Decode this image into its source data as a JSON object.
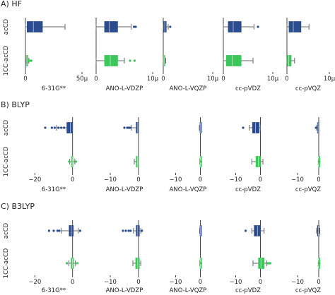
{
  "colors": {
    "acCD": "#2b4d8f",
    "1CC-acCD": "#3cc75a",
    "whisker": "#666666",
    "axis": "#444444"
  },
  "row_labels": [
    "acCD",
    "1CC-acCD"
  ],
  "chart_data": [
    {
      "type": "box",
      "panel_label": "A) HF",
      "x_unit": "μ",
      "subplots": [
        {
          "basis": "6-31G**",
          "xlim": [
            0,
            5e-05
          ],
          "ticks": [
            {
              "v": 0,
              "label": "0"
            },
            {
              "v": 5e-05,
              "label": "50μ"
            }
          ],
          "acCD": {
            "box": [
              1.5e-06,
              7e-06,
              1.5e-05
            ],
            "whiskers": [
              0,
              3.5e-05
            ],
            "outliers": []
          },
          "1CC-acCD": {
            "box": [
              8e-07,
              1.3e-06,
              2.2e-06
            ],
            "whiskers": [
              2e-07,
              3e-06
            ],
            "outliers": [
              4.5e-06,
              5.2e-06,
              3.6e-06,
              2.8e-06
            ]
          }
        },
        {
          "basis": "ANO-L-VDZP",
          "xlim": [
            0,
            1e-05
          ],
          "ticks": [
            {
              "v": 0,
              "label": "0"
            },
            {
              "v": 1e-05,
              "label": "10μ"
            }
          ],
          "acCD": {
            "box": [
              1.5e-06,
              2.3e-06,
              3.8e-06
            ],
            "whiskers": [
              0,
              6.2e-06
            ],
            "outliers": [
              6.7e-06,
              7e-06
            ]
          },
          "1CC-acCD": {
            "box": [
              1.5e-06,
              2.5e-06,
              3.8e-06
            ],
            "whiskers": [
              0,
              5e-06
            ],
            "outliers": [
              6e-06,
              6.8e-06
            ]
          }
        },
        {
          "basis": "ANO-L-VQZP",
          "xlim": [
            0,
            1e-05
          ],
          "ticks": [
            {
              "v": 0,
              "label": "0"
            },
            {
              "v": 1e-05,
              "label": "10μ"
            }
          ],
          "acCD": {
            "box": [
              1e-07,
              3e-07,
              6e-07
            ],
            "whiskers": [
              0,
              1e-06
            ],
            "outliers": [
              1.4e-06
            ]
          },
          "1CC-acCD": {
            "box": [
              5e-08,
              1.5e-07,
              3e-07
            ],
            "whiskers": [
              0,
              5e-07
            ],
            "outliers": []
          }
        },
        {
          "basis": "cc-pVDZ",
          "xlim": [
            0,
            1e-05
          ],
          "ticks": [
            {
              "v": 0,
              "label": "0"
            },
            {
              "v": 1e-05,
              "label": "10μ"
            }
          ],
          "acCD": {
            "box": [
              1e-06,
              2e-06,
              3.6e-06
            ],
            "whiskers": [
              0,
              6.2e-06
            ],
            "outliers": [
              7e-06
            ]
          },
          "1CC-acCD": {
            "box": [
              6e-07,
              1.8e-06,
              3.6e-06
            ],
            "whiskers": [
              0,
              6e-06
            ],
            "outliers": []
          }
        },
        {
          "basis": "cc-pVQZ",
          "xlim": [
            0,
            1e-05
          ],
          "ticks": [
            {
              "v": 0,
              "label": "0"
            },
            {
              "v": 1e-05,
              "label": "10μ"
            }
          ],
          "acCD": {
            "box": [
              5e-07,
              1.5e-06,
              3.3e-06
            ],
            "whiskers": [
              0,
              5.2e-06
            ],
            "outliers": []
          },
          "1CC-acCD": {
            "box": [
              1e-07,
              4e-07,
              1e-06
            ],
            "whiskers": [
              0,
              1.8e-06
            ],
            "outliers": []
          }
        }
      ]
    },
    {
      "type": "box",
      "panel_label": "B) BLYP",
      "x_unit": "",
      "subplots": [
        {
          "basis": "6-31G**",
          "xlim": [
            -25,
            5
          ],
          "ticks": [
            {
              "v": -20,
              "label": "−20"
            },
            {
              "v": 0,
              "label": "0"
            }
          ],
          "acCD": {
            "box": [
              -3.0,
              -1.2,
              -0.2
            ],
            "whiskers": [
              -8.5,
              0
            ],
            "outliers": [
              -14.5,
              -11.0,
              -9.5,
              -7.5,
              -6.0,
              -4.5
            ]
          },
          "1CC-acCD": {
            "box": [
              -0.6,
              -0.2,
              0.2
            ],
            "whiskers": [
              -1.5,
              1.2
            ],
            "outliers": [
              -1.8,
              1.8
            ]
          }
        },
        {
          "basis": "ANO-L-VDZP",
          "xlim": [
            -15,
            5
          ],
          "ticks": [
            {
              "v": -10,
              "label": "−10"
            },
            {
              "v": 0,
              "label": "0"
            }
          ],
          "acCD": {
            "box": [
              -0.8,
              -0.3,
              0
            ],
            "whiskers": [
              -2.5,
              0
            ],
            "outliers": [
              -5.0,
              -4.0,
              -3.5,
              -3.0
            ]
          },
          "1CC-acCD": {
            "box": [
              -0.8,
              -0.4,
              0
            ],
            "whiskers": [
              -1.5,
              0
            ],
            "outliers": []
          }
        },
        {
          "basis": "ANO-L-VQZP",
          "xlim": [
            -15,
            5
          ],
          "ticks": [
            {
              "v": -10,
              "label": "−10"
            },
            {
              "v": 0,
              "label": "0"
            }
          ],
          "acCD": {
            "box": [
              -0.15,
              -0.05,
              0
            ],
            "whiskers": [
              -0.4,
              0
            ],
            "outliers": []
          },
          "1CC-acCD": {
            "box": [
              -0.1,
              0,
              0.05
            ],
            "whiskers": [
              -0.2,
              0.1
            ],
            "outliers": [
              0.3
            ]
          }
        },
        {
          "basis": "cc-pVDZ",
          "xlim": [
            -15,
            5
          ],
          "ticks": [
            {
              "v": -10,
              "label": "−10"
            },
            {
              "v": 0,
              "label": "0"
            }
          ],
          "acCD": {
            "box": [
              -3.2,
              -2.0,
              -0.5
            ],
            "whiskers": [
              -4.5,
              0
            ],
            "outliers": [
              -7.0
            ]
          },
          "1CC-acCD": {
            "box": [
              -1.8,
              -0.8,
              0
            ],
            "whiskers": [
              -3.5,
              1.0
            ],
            "outliers": []
          }
        },
        {
          "basis": "cc-pVQZ",
          "xlim": [
            -15,
            5
          ],
          "ticks": [
            {
              "v": -10,
              "label": "−10"
            },
            {
              "v": 0,
              "label": "0"
            }
          ],
          "acCD": {
            "box": [
              -0.6,
              -0.3,
              -0.1
            ],
            "whiskers": [
              -1.0,
              0
            ],
            "outliers": [
              -1.3
            ]
          },
          "1CC-acCD": {
            "box": [
              -0.1,
              0,
              0.05
            ],
            "whiskers": [
              -0.2,
              0.1
            ],
            "outliers": [
              0.3
            ]
          }
        }
      ]
    },
    {
      "type": "box",
      "panel_label": "C) B3LYP",
      "x_unit": "",
      "subplots": [
        {
          "basis": "6-31G**",
          "xlim": [
            -25,
            5
          ],
          "ticks": [
            {
              "v": -20,
              "label": "−20"
            },
            {
              "v": 0,
              "label": "0"
            }
          ],
          "acCD": {
            "box": [
              -1.8,
              -0.6,
              0.4
            ],
            "whiskers": [
              -6.0,
              3.0
            ],
            "outliers": [
              -12.5,
              -10.0,
              -8.0,
              -7.0,
              4.0
            ]
          },
          "1CC-acCD": {
            "box": [
              -0.7,
              -0.1,
              0.5
            ],
            "whiskers": [
              -2.0,
              1.5
            ],
            "outliers": [
              -3.0,
              2.5
            ]
          }
        },
        {
          "basis": "ANO-L-VDZP",
          "xlim": [
            -15,
            5
          ],
          "ticks": [
            {
              "v": -10,
              "label": "−10"
            },
            {
              "v": 0,
              "label": "0"
            }
          ],
          "acCD": {
            "box": [
              -0.8,
              -0.3,
              0.3
            ],
            "whiskers": [
              -1.8,
              0.8
            ],
            "outliers": [
              -5.5,
              -4.5,
              -3.5,
              -2.8,
              1.2
            ]
          },
          "1CC-acCD": {
            "box": [
              -1.0,
              -0.3,
              0.3
            ],
            "whiskers": [
              -2.0,
              0.8
            ],
            "outliers": []
          }
        },
        {
          "basis": "ANO-L-VQZP",
          "xlim": [
            -15,
            5
          ],
          "ticks": [
            {
              "v": -10,
              "label": "−10"
            },
            {
              "v": 0,
              "label": "0"
            }
          ],
          "acCD": {
            "box": [
              -0.15,
              -0.05,
              0.05
            ],
            "whiskers": [
              -0.3,
              0.1
            ],
            "outliers": []
          },
          "1CC-acCD": {
            "box": [
              -0.1,
              0,
              0.05
            ],
            "whiskers": [
              -0.2,
              0.1
            ],
            "outliers": [
              0.3
            ]
          }
        },
        {
          "basis": "cc-pVDZ",
          "xlim": [
            -15,
            5
          ],
          "ticks": [
            {
              "v": -10,
              "label": "−10"
            },
            {
              "v": 0,
              "label": "0"
            }
          ],
          "acCD": {
            "box": [
              -2.5,
              -1.2,
              0
            ],
            "whiskers": [
              -3.5,
              1.5
            ],
            "outliers": [
              -6.0
            ]
          },
          "1CC-acCD": {
            "box": [
              -0.8,
              0.2,
              1.5
            ],
            "whiskers": [
              -3.0,
              2.5
            ],
            "outliers": [
              3.0,
              3.5,
              4.0
            ]
          }
        },
        {
          "basis": "cc-pVQZ",
          "xlim": [
            -15,
            5
          ],
          "ticks": [
            {
              "v": -10,
              "label": "−10"
            },
            {
              "v": 0,
              "label": "0"
            }
          ],
          "acCD": {
            "box": [
              -0.6,
              -0.2,
              0.2
            ],
            "whiskers": [
              -1.0,
              0.5
            ],
            "outliers": []
          },
          "1CC-acCD": {
            "box": [
              -0.1,
              0,
              0.05
            ],
            "whiskers": [
              -0.2,
              0.1
            ],
            "outliers": [
              0.3
            ]
          }
        }
      ]
    }
  ]
}
